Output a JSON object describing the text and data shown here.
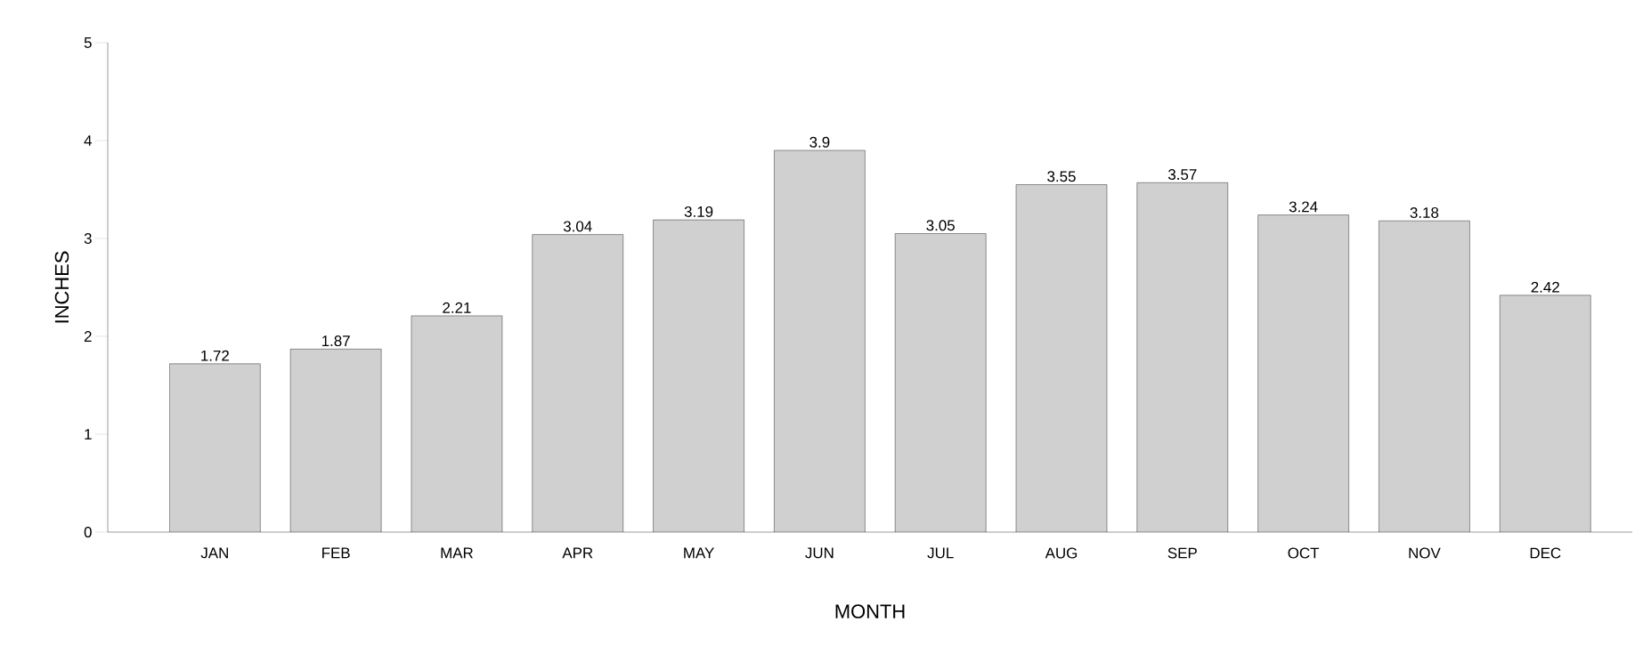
{
  "chart_data": {
    "type": "bar",
    "xlabel": "MONTH",
    "ylabel": "INCHES",
    "categories": [
      "JAN",
      "FEB",
      "MAR",
      "APR",
      "MAY",
      "JUN",
      "JUL",
      "AUG",
      "SEP",
      "OCT",
      "NOV",
      "DEC"
    ],
    "values": [
      1.72,
      1.87,
      2.21,
      3.04,
      3.19,
      3.9,
      3.05,
      3.55,
      3.57,
      3.24,
      3.18,
      2.42
    ],
    "color": "#d0d0d0",
    "ylim": [
      0,
      5
    ],
    "yticks": [
      0,
      1,
      2,
      3,
      4,
      5
    ],
    "data_labels": true,
    "grid": false
  }
}
